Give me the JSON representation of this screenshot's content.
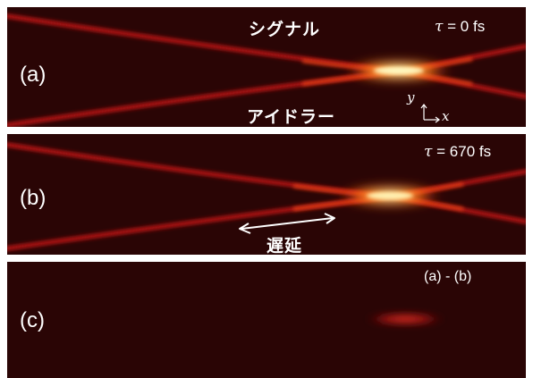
{
  "panels": {
    "a": {
      "label": "(a)",
      "tau_symbol": "τ",
      "tau_value": "= 0 fs",
      "signal_label": "シグナル",
      "idler_label": "アイドラー",
      "axis_y": "y",
      "axis_x": "x"
    },
    "b": {
      "label": "(b)",
      "tau_symbol": "τ",
      "tau_value": "= 670 fs",
      "delay_label": "遅延"
    },
    "c": {
      "label": "(c)",
      "diff_label": "(a) - (b)"
    }
  },
  "colors": {
    "background": "#2a0505",
    "beam": "#c41e1e",
    "hot": "#ff6a10",
    "core": "#ffe680",
    "divider": "#ffffff"
  }
}
